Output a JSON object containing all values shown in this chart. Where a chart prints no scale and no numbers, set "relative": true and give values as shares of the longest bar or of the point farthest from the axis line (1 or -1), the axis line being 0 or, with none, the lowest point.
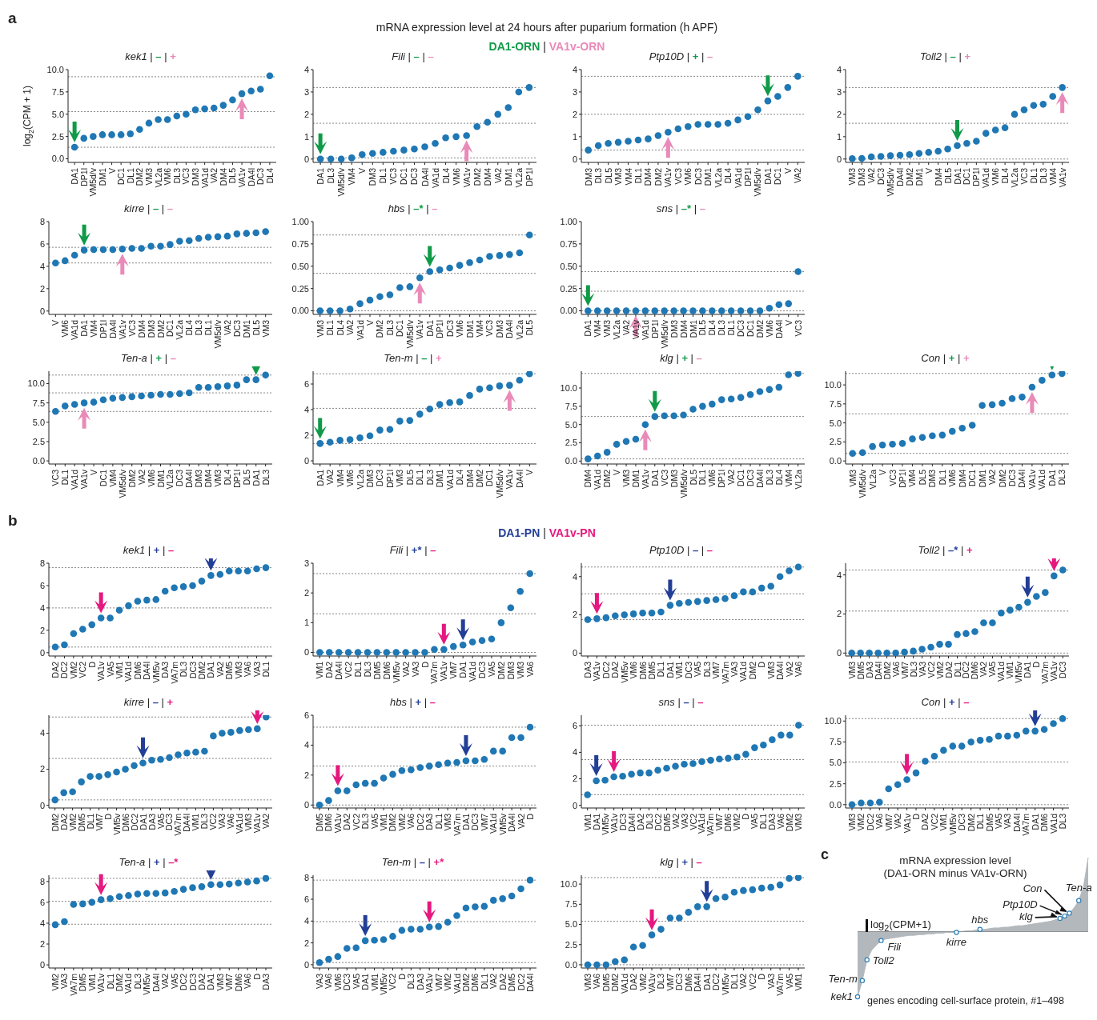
{
  "chart_data": [
    {
      "type": "scatter",
      "title": "kek1 | – | +",
      "ylabel": "log$_{2}$(CPM + 1)",
      "marker": "circle",
      "annotations": [
        "a",
        "mRNA expression level at 24 hours after puparium formation (h APF)",
        "DA1-ORN | VA1v-ORN"
      ],
      "categories": [
        "DA1",
        "DP1l",
        "VM5d/v",
        "DM1",
        "V",
        "DC1",
        "DL1",
        "DM2",
        "VM3",
        "VL2a",
        "VM6",
        "DL3",
        "VC3",
        "DM3",
        "VA1d",
        "VA2",
        "DM4",
        "DL5",
        "VA1v",
        "DA4l",
        "DC3",
        "DL4"
      ],
      "series": [
        {
          "color": "#1f77b4",
          "values": [
            1.3,
            2.3,
            2.5,
            2.7,
            2.7,
            2.7,
            2.8,
            3.3,
            4.0,
            4.4,
            4.4,
            4.8,
            5.0,
            5.5,
            5.6,
            5.7,
            6.0,
            6.6,
            7.3,
            7.6,
            7.8,
            9.3
          ]
        }
      ],
      "ylim": [
        -0.4,
        10
      ],
      "yticks": [
        {
          "value": 0,
          "label": "0.0"
        },
        {
          "value": 2.5,
          "label": "2.5"
        },
        {
          "value": 5,
          "label": "5.0"
        },
        {
          "value": 7.5,
          "label": "7.5"
        },
        {
          "value": 10,
          "label": "10.0"
        }
      ],
      "ref_lines": [
        {
          "axis": "y",
          "value": 1.3
        },
        {
          "axis": "y",
          "value": 5.3
        },
        {
          "axis": "y",
          "value": 9.2
        }
      ]
    },
    {
      "type": "scatter",
      "title": "Fili | – | –",
      "marker": "circle",
      "categories": [
        "DA1",
        "DL3",
        "VM5d/v",
        "VM4",
        "V",
        "DM3",
        "DL1",
        "VC3",
        "DC1",
        "DC3",
        "DA4l",
        "VA1d",
        "DL4",
        "VM6",
        "VA1v",
        "DM2",
        "DM4",
        "VA2",
        "DM1",
        "VL2a",
        "DP1l"
      ],
      "series": [
        {
          "color": "#1f77b4",
          "values": [
            0,
            0,
            0,
            0.05,
            0.2,
            0.25,
            0.3,
            0.35,
            0.4,
            0.45,
            0.55,
            0.7,
            0.95,
            1.0,
            1.05,
            1.45,
            1.65,
            2.0,
            2.3,
            3.0,
            3.2
          ]
        }
      ],
      "ylim": [
        -0.15,
        4
      ],
      "yticks": [
        0,
        1,
        2,
        3,
        4
      ],
      "ref_lines": [
        {
          "axis": "y",
          "value": 0.05
        },
        {
          "axis": "y",
          "value": 1.6
        },
        {
          "axis": "y",
          "value": 3.2
        }
      ]
    },
    {
      "type": "scatter",
      "title": "Ptp10D | + | –",
      "marker": "circle",
      "categories": [
        "DM3",
        "DL3",
        "DL5",
        "VM3",
        "VM4",
        "DL1",
        "DM4",
        "DM2",
        "VA1v",
        "VC3",
        "VM6",
        "DC3",
        "DM1",
        "VL2a",
        "DL4",
        "VA1d",
        "DP1l",
        "VM5d/v",
        "DA1",
        "DC1",
        "V",
        "VA2"
      ],
      "series": [
        {
          "color": "#1f77b4",
          "values": [
            0.4,
            0.6,
            0.7,
            0.75,
            0.8,
            0.85,
            0.9,
            1.05,
            1.2,
            1.35,
            1.45,
            1.55,
            1.55,
            1.55,
            1.6,
            1.75,
            1.9,
            2.2,
            2.6,
            2.8,
            3.2,
            3.7
          ]
        }
      ],
      "ylim": [
        -0.15,
        4
      ],
      "yticks": [
        0,
        1,
        2,
        3,
        4
      ],
      "ref_lines": [
        {
          "axis": "y",
          "value": 0.4
        },
        {
          "axis": "y",
          "value": 2.0
        },
        {
          "axis": "y",
          "value": 3.7
        }
      ]
    },
    {
      "type": "scatter",
      "title": "Toll2 | – | +",
      "marker": "circle",
      "categories": [
        "VM3",
        "DM3",
        "VA2",
        "DC3",
        "VM5d/v",
        "DA4l",
        "DM2",
        "DM1",
        "V",
        "DM4",
        "DL5",
        "DA1",
        "DC1",
        "DP1l",
        "VA1d",
        "VM6",
        "DL4",
        "VL2a",
        "VC3",
        "DL1",
        "DL3",
        "VM4",
        "VA1v"
      ],
      "series": [
        {
          "color": "#1f77b4",
          "values": [
            0.02,
            0.03,
            0.1,
            0.12,
            0.15,
            0.17,
            0.2,
            0.25,
            0.3,
            0.35,
            0.45,
            0.6,
            0.7,
            0.8,
            1.15,
            1.3,
            1.4,
            2.0,
            2.2,
            2.4,
            2.45,
            2.8,
            3.2
          ]
        }
      ],
      "ylim": [
        -0.15,
        4
      ],
      "yticks": [
        0,
        1,
        2,
        3,
        4
      ],
      "ref_lines": [
        {
          "axis": "y",
          "value": 0.0
        },
        {
          "axis": "y",
          "value": 1.6
        },
        {
          "axis": "y",
          "value": 3.2
        }
      ]
    },
    {
      "type": "scatter",
      "title": "kirre | – | –",
      "marker": "circle",
      "categories": [
        "V",
        "VM6",
        "VA1d",
        "DA1",
        "VM4",
        "DP1l",
        "DA4l",
        "VA1v",
        "VC3",
        "DM4",
        "DM3",
        "DM2",
        "DC1",
        "VL2a",
        "DL4",
        "DL3",
        "DL1",
        "VM5d/v",
        "VA2",
        "DC3",
        "DM1",
        "DL5",
        "VM3"
      ],
      "series": [
        {
          "color": "#1f77b4",
          "values": [
            4.3,
            4.5,
            5.0,
            5.45,
            5.5,
            5.5,
            5.5,
            5.55,
            5.6,
            5.6,
            5.8,
            5.8,
            5.95,
            6.25,
            6.3,
            6.5,
            6.6,
            6.65,
            6.7,
            6.9,
            6.95,
            7.0,
            7.1
          ]
        }
      ],
      "ylim": [
        -0.3,
        8
      ],
      "yticks": [
        0,
        2,
        4,
        6,
        8
      ],
      "ref_lines": [
        {
          "axis": "y",
          "value": 4.3
        },
        {
          "axis": "y",
          "value": 5.7
        }
      ]
    },
    {
      "type": "scatter",
      "title": "hbs | –* | –",
      "marker": "circle",
      "categories": [
        "VM3",
        "DL1",
        "DL4",
        "VA2",
        "VA1d",
        "V",
        "DM2",
        "DL3",
        "DC1",
        "VM5d/v",
        "VA1v",
        "DA1",
        "DP1l",
        "DC3",
        "VM6",
        "DM1",
        "VM4",
        "VC3",
        "DM3",
        "DA4l",
        "VL2a",
        "DL5"
      ],
      "series": [
        {
          "color": "#1f77b4",
          "values": [
            0,
            0,
            0,
            0.02,
            0.08,
            0.12,
            0.16,
            0.18,
            0.26,
            0.27,
            0.37,
            0.44,
            0.46,
            0.48,
            0.51,
            0.54,
            0.57,
            0.61,
            0.62,
            0.63,
            0.65,
            0.85
          ]
        }
      ],
      "ylim": [
        -0.04,
        1
      ],
      "yticks": [
        {
          "value": 0,
          "label": "0.00"
        },
        {
          "value": 0.25,
          "label": "0.25"
        },
        {
          "value": 0.5,
          "label": "0.50"
        },
        {
          "value": 0.75,
          "label": "0.75"
        },
        {
          "value": 1,
          "label": "1.00"
        }
      ],
      "ref_lines": [
        {
          "axis": "y",
          "value": 0.0
        },
        {
          "axis": "y",
          "value": 0.42
        },
        {
          "axis": "y",
          "value": 0.85
        }
      ]
    },
    {
      "type": "scatter",
      "title": "sns | –* | –",
      "marker": "circle",
      "categories": [
        "DA1",
        "VM4",
        "VM3",
        "VL2a",
        "VA2",
        "VA1v",
        "VA1d",
        "DP1l",
        "VM5d/v",
        "DM3",
        "DM4",
        "DM1",
        "DL5",
        "DL4",
        "DL3",
        "DL1",
        "DC3",
        "DC1",
        "DM2",
        "VM6",
        "DA4l",
        "V",
        "VC3"
      ],
      "series": [
        {
          "color": "#1f77b4",
          "values": [
            0,
            0,
            0,
            0,
            0,
            0,
            0,
            0,
            0,
            0,
            0,
            0,
            0,
            0,
            0,
            0,
            0,
            0,
            0,
            0.03,
            0.07,
            0.08,
            0.44
          ]
        }
      ],
      "ylim": [
        -0.04,
        1
      ],
      "yticks": [
        {
          "value": 0,
          "label": "0.00"
        },
        {
          "value": 0.25,
          "label": "0.25"
        },
        {
          "value": 0.5,
          "label": "0.50"
        },
        {
          "value": 0.75,
          "label": "0.75"
        },
        {
          "value": 1,
          "label": "1.00"
        }
      ],
      "ref_lines": [
        {
          "axis": "y",
          "value": 0.0
        },
        {
          "axis": "y",
          "value": 0.22
        },
        {
          "axis": "y",
          "value": 0.44
        }
      ]
    },
    {
      "type": "scatter",
      "title": "Ten-a | + | –",
      "marker": "circle",
      "categories": [
        "VC3",
        "DL1",
        "VA1d",
        "VA1v",
        "V",
        "DC1",
        "VM4",
        "VM5d/v",
        "DM2",
        "VA2",
        "VM6",
        "DM1",
        "VL2a",
        "DC3",
        "DA4l",
        "DM3",
        "DM4",
        "VM3",
        "DL4",
        "DP1l",
        "DL5",
        "DA1",
        "DL3"
      ],
      "series": [
        {
          "color": "#1f77b4",
          "values": [
            6.4,
            7.1,
            7.3,
            7.5,
            7.6,
            7.9,
            8.1,
            8.2,
            8.3,
            8.4,
            8.5,
            8.6,
            8.6,
            8.7,
            8.8,
            9.5,
            9.5,
            9.6,
            9.7,
            9.8,
            10.5,
            10.5,
            11.1
          ]
        }
      ],
      "ylim": [
        -0.4,
        11.6
      ],
      "yticks": [
        {
          "value": 0,
          "label": "0.0"
        },
        {
          "value": 2.5,
          "label": "2.5"
        },
        {
          "value": 5,
          "label": "5.0"
        },
        {
          "value": 7.5,
          "label": "7.5"
        },
        {
          "value": 10,
          "label": "10.0"
        }
      ],
      "ref_lines": [
        {
          "axis": "y",
          "value": 6.4
        },
        {
          "axis": "y",
          "value": 8.8
        },
        {
          "axis": "y",
          "value": 11.1
        }
      ]
    },
    {
      "type": "scatter",
      "title": "Ten-m | – | +",
      "marker": "circle",
      "categories": [
        "DA1",
        "VA2",
        "VM4",
        "VM6",
        "VL2a",
        "DM3",
        "DC3",
        "DP1l",
        "VM3",
        "DL5",
        "DL1",
        "DL3",
        "DM1",
        "VA1d",
        "DL4",
        "DM4",
        "DM2",
        "DC1",
        "VM5d/v",
        "VA1v",
        "DA4l",
        "V"
      ],
      "series": [
        {
          "color": "#1f77b4",
          "values": [
            1.35,
            1.45,
            1.6,
            1.65,
            1.8,
            1.95,
            2.4,
            2.45,
            3.1,
            3.15,
            3.65,
            4.05,
            4.4,
            4.55,
            4.6,
            5.1,
            5.6,
            5.7,
            5.85,
            5.9,
            6.3,
            6.8
          ]
        }
      ],
      "ylim": [
        -0.25,
        7
      ],
      "yticks": [
        0,
        2,
        4,
        6
      ],
      "ref_lines": [
        {
          "axis": "y",
          "value": 1.35
        },
        {
          "axis": "y",
          "value": 4.1
        },
        {
          "axis": "y",
          "value": 6.8
        }
      ]
    },
    {
      "type": "scatter",
      "title": "klg | + | –",
      "marker": "circle",
      "categories": [
        "DM4",
        "VA1d",
        "DM2",
        "V",
        "VM3",
        "DM1",
        "VA1v",
        "DA1",
        "VC3",
        "DM3",
        "VM5d/v",
        "DL5",
        "DL1",
        "VM6",
        "DP1l",
        "VA2",
        "DC1",
        "DC3",
        "DA4l",
        "DL3",
        "DL4",
        "VM4",
        "VL2a"
      ],
      "series": [
        {
          "color": "#1f77b4",
          "values": [
            0.3,
            0.7,
            1.2,
            2.3,
            2.7,
            3.0,
            5.0,
            6.1,
            6.2,
            6.2,
            6.3,
            7.1,
            7.5,
            7.8,
            8.4,
            8.5,
            8.7,
            9.1,
            9.5,
            9.8,
            10.1,
            11.8,
            12.0
          ]
        }
      ],
      "ylim": [
        -0.4,
        12.3
      ],
      "yticks": [
        {
          "value": 0,
          "label": "0.0"
        },
        {
          "value": 2.5,
          "label": "2.5"
        },
        {
          "value": 5,
          "label": "5.0"
        },
        {
          "value": 7.5,
          "label": "7.5"
        },
        {
          "value": 10,
          "label": "10.0"
        }
      ],
      "ref_lines": [
        {
          "axis": "y",
          "value": 0.3
        },
        {
          "axis": "y",
          "value": 6.1
        },
        {
          "axis": "y",
          "value": 12.0
        }
      ]
    },
    {
      "type": "scatter",
      "title": "Con | + | +",
      "marker": "circle",
      "categories": [
        "VM3",
        "VM5d/v",
        "VL2a",
        "V",
        "VC3",
        "DP1l",
        "VM4",
        "DL5",
        "DM3",
        "DL1",
        "VM6",
        "DM4",
        "DC1",
        "DM1",
        "VA2",
        "DM2",
        "DC3",
        "DA4l",
        "VA1v",
        "VA1d",
        "DA1",
        "DL3"
      ],
      "series": [
        {
          "color": "#1f77b4",
          "values": [
            1.0,
            1.1,
            1.9,
            2.1,
            2.2,
            2.3,
            2.9,
            3.1,
            3.3,
            3.4,
            3.9,
            4.3,
            4.7,
            7.3,
            7.4,
            7.6,
            8.2,
            8.4,
            9.7,
            10.6,
            11.3,
            11.5
          ]
        }
      ],
      "ylim": [
        -0.4,
        11.8
      ],
      "yticks": [
        {
          "value": 0,
          "label": "0.0"
        },
        {
          "value": 2.5,
          "label": "2.5"
        },
        {
          "value": 5,
          "label": "5.0"
        },
        {
          "value": 7.5,
          "label": "7.5"
        },
        {
          "value": 10,
          "label": "10.0"
        }
      ],
      "ref_lines": [
        {
          "axis": "y",
          "value": 1.0
        },
        {
          "axis": "y",
          "value": 6.2
        },
        {
          "axis": "y",
          "value": 11.5
        }
      ]
    },
    {
      "type": "scatter",
      "title": "kek1 | + | –",
      "marker": "circle",
      "annotations": [
        "b",
        "DA1-PN | VA1v-PN"
      ],
      "categories": [
        "DA2",
        "DC2",
        "VM2",
        "VC2",
        "D",
        "VA1v",
        "VA5",
        "VM1",
        "VA1d",
        "DM6",
        "DA4l",
        "VM5v",
        "DA3",
        "VA7m",
        "DL3",
        "DC3",
        "DM2",
        "DA1",
        "VA2",
        "DM5",
        "VM3",
        "VA6",
        "VA3",
        "DL1"
      ],
      "series": [
        {
          "color": "#1f77b4",
          "values": [
            0.5,
            0.7,
            1.7,
            2.1,
            2.5,
            3.1,
            3.1,
            3.8,
            4.2,
            4.6,
            4.7,
            4.75,
            5.5,
            5.8,
            5.9,
            6.0,
            6.4,
            6.9,
            7.0,
            7.3,
            7.3,
            7.3,
            7.5,
            7.6
          ]
        }
      ],
      "ylim": [
        -0.3,
        8
      ],
      "yticks": [
        0,
        2,
        4,
        6,
        8
      ],
      "ref_lines": [
        {
          "axis": "y",
          "value": 0.5
        },
        {
          "axis": "y",
          "value": 4.0
        },
        {
          "axis": "y",
          "value": 7.6
        }
      ]
    },
    {
      "type": "scatter",
      "title": "Fili | +* | –",
      "marker": "circle",
      "categories": [
        "VM1",
        "DA2",
        "DA4l",
        "VC2",
        "DL1",
        "DL3",
        "DM5",
        "DM6",
        "VM5v",
        "VA2",
        "VA3",
        "D",
        "VA7m",
        "VA1v",
        "VM7",
        "DA1",
        "VA1d",
        "DC3",
        "VA5",
        "DM2",
        "DM3",
        "VM3",
        "VA6"
      ],
      "series": [
        {
          "color": "#1f77b4",
          "values": [
            0,
            0,
            0,
            0,
            0,
            0,
            0,
            0,
            0,
            0,
            0,
            0,
            0.1,
            0.1,
            0.2,
            0.25,
            0.35,
            0.4,
            0.45,
            1.0,
            1.5,
            2.05,
            2.65
          ]
        }
      ],
      "ylim": [
        -0.12,
        3
      ],
      "yticks": [
        0,
        1,
        2,
        3
      ],
      "ref_lines": [
        {
          "axis": "y",
          "value": 0.0
        },
        {
          "axis": "y",
          "value": 1.3
        },
        {
          "axis": "y",
          "value": 2.65
        }
      ]
    },
    {
      "type": "scatter",
      "title": "Ptp10D | – | –",
      "marker": "circle",
      "categories": [
        "DA3",
        "VA1v",
        "DC2",
        "DA2",
        "VM5v",
        "VM6",
        "DM6",
        "DM5",
        "DL1",
        "DA1",
        "VM1",
        "DC3",
        "VA5",
        "DL3",
        "VM7",
        "VA7m",
        "VA3",
        "VA1d",
        "DM2",
        "D",
        "VM3",
        "DA4l",
        "VA2",
        "VA6"
      ],
      "series": [
        {
          "color": "#1f77b4",
          "values": [
            1.75,
            1.8,
            1.85,
            1.95,
            2.0,
            2.05,
            2.1,
            2.1,
            2.15,
            2.5,
            2.6,
            2.65,
            2.7,
            2.75,
            2.8,
            2.85,
            3.0,
            3.2,
            3.2,
            3.4,
            3.5,
            4.0,
            4.3,
            4.5
          ]
        }
      ],
      "ylim": [
        -0.15,
        4.7
      ],
      "yticks": [
        0,
        2,
        4
      ],
      "ref_lines": [
        {
          "axis": "y",
          "value": 1.75
        },
        {
          "axis": "y",
          "value": 3.1
        },
        {
          "axis": "y",
          "value": 4.5
        }
      ]
    },
    {
      "type": "scatter",
      "title": "Toll2 | –* | +",
      "marker": "circle",
      "categories": [
        "VM3",
        "DM5",
        "DA3",
        "DA4l",
        "DM2",
        "VA6",
        "VM7",
        "DL3",
        "VA3",
        "VC2",
        "VM2",
        "DA2",
        "DL1",
        "DC2",
        "DM6",
        "VA2",
        "VA5",
        "VA1d",
        "VM1",
        "VM5v",
        "DA1",
        "D",
        "VA7m",
        "VA1v",
        "DC3"
      ],
      "series": [
        {
          "color": "#1f77b4",
          "values": [
            0,
            0,
            0,
            0,
            0,
            0,
            0.05,
            0.1,
            0.2,
            0.3,
            0.45,
            0.45,
            0.95,
            1.0,
            1.1,
            1.55,
            1.55,
            2.05,
            2.2,
            2.35,
            2.6,
            2.9,
            3.1,
            3.95,
            4.25
          ]
        }
      ],
      "ylim": [
        -0.15,
        4.6
      ],
      "yticks": [
        0,
        2,
        4
      ],
      "ref_lines": [
        {
          "axis": "y",
          "value": 0.0
        },
        {
          "axis": "y",
          "value": 2.15
        },
        {
          "axis": "y",
          "value": 4.25
        }
      ]
    },
    {
      "type": "scatter",
      "title": "kirre | – | +",
      "marker": "circle",
      "categories": [
        "DM2",
        "DA2",
        "VM2",
        "DM5",
        "DL1",
        "VM7",
        "D",
        "VM5v",
        "DM6",
        "DC2",
        "DA1",
        "DA3",
        "VA5",
        "DC3",
        "VA7m",
        "DA4l",
        "VM1",
        "DL3",
        "VC2",
        "VA3",
        "VA6",
        "VA1d",
        "VM3",
        "VA1v",
        "VA2"
      ],
      "series": [
        {
          "color": "#1f77b4",
          "values": [
            0.3,
            0.7,
            0.75,
            1.3,
            1.6,
            1.6,
            1.7,
            1.85,
            2.0,
            2.2,
            2.35,
            2.5,
            2.55,
            2.65,
            2.8,
            2.9,
            2.95,
            3.0,
            3.85,
            4.0,
            4.05,
            4.15,
            4.2,
            4.25,
            4.9
          ]
        }
      ],
      "ylim": [
        -0.15,
        5
      ],
      "yticks": [
        0,
        2,
        4
      ],
      "ref_lines": [
        {
          "axis": "y",
          "value": 0.3
        },
        {
          "axis": "y",
          "value": 2.6
        },
        {
          "axis": "y",
          "value": 4.9
        }
      ]
    },
    {
      "type": "scatter",
      "title": "hbs | + | –",
      "marker": "circle",
      "categories": [
        "DM5",
        "DM6",
        "VA1v",
        "DA2",
        "VC2",
        "DL3",
        "VA5",
        "VM1",
        "DM2",
        "VM2",
        "VA6",
        "DC2",
        "DA3",
        "DL1",
        "VM3",
        "VA7m",
        "DA1",
        "DC3",
        "VM7",
        "VA1d",
        "VM5v",
        "DA4l",
        "VA2",
        "D"
      ],
      "series": [
        {
          "color": "#1f77b4",
          "values": [
            0,
            0.3,
            0.95,
            0.95,
            1.35,
            1.45,
            1.45,
            1.8,
            2.05,
            2.3,
            2.35,
            2.5,
            2.6,
            2.7,
            2.8,
            2.85,
            2.95,
            2.95,
            3.05,
            3.6,
            3.6,
            4.5,
            4.5,
            5.2
          ]
        }
      ],
      "ylim": [
        -0.2,
        6
      ],
      "yticks": [
        0,
        2,
        4,
        6
      ],
      "ref_lines": [
        {
          "axis": "y",
          "value": 0.0
        },
        {
          "axis": "y",
          "value": 2.6
        },
        {
          "axis": "y",
          "value": 5.2
        }
      ]
    },
    {
      "type": "scatter",
      "title": "sns | – | –",
      "marker": "circle",
      "categories": [
        "VM1",
        "DA1",
        "VM5v",
        "VA1v",
        "DC3",
        "DA4l",
        "DA2",
        "DL3",
        "DC2",
        "DM5",
        "VA2",
        "VA3",
        "VC2",
        "VA1d",
        "VA7m",
        "VM7",
        "DM6",
        "VM2",
        "D",
        "VA5",
        "DL1",
        "DA3",
        "VA6",
        "DM2",
        "VM3"
      ],
      "series": [
        {
          "color": "#1f77b4",
          "values": [
            0.8,
            1.85,
            1.9,
            2.15,
            2.2,
            2.35,
            2.45,
            2.45,
            2.65,
            2.8,
            2.95,
            3.1,
            3.15,
            3.3,
            3.4,
            3.5,
            3.55,
            3.65,
            3.85,
            4.35,
            4.55,
            4.95,
            5.3,
            5.3,
            6.05
          ]
        }
      ],
      "ylim": [
        -0.2,
        6.8
      ],
      "yticks": [
        0,
        2,
        4,
        6
      ],
      "ref_lines": [
        {
          "axis": "y",
          "value": 0.8
        },
        {
          "axis": "y",
          "value": 3.45
        },
        {
          "axis": "y",
          "value": 6.05
        }
      ]
    },
    {
      "type": "scatter",
      "title": "Con | + | –",
      "marker": "circle",
      "categories": [
        "VM3",
        "VM2",
        "DC2",
        "VA6",
        "VM7",
        "VA2",
        "VA1v",
        "D",
        "DA2",
        "VC2",
        "VM1",
        "VM5v",
        "DC3",
        "DM2",
        "DL1",
        "DM5",
        "VA5",
        "VA3",
        "DA4l",
        "VA7m",
        "DA1",
        "DM6",
        "VA1d",
        "DL3"
      ],
      "series": [
        {
          "color": "#1f77b4",
          "values": [
            0,
            0.2,
            0.2,
            0.3,
            1.9,
            2.4,
            3.0,
            3.8,
            5.2,
            5.8,
            6.5,
            7.0,
            7.0,
            7.5,
            7.7,
            7.8,
            8.2,
            8.2,
            8.3,
            8.8,
            8.8,
            9.0,
            9.7,
            10.3
          ]
        }
      ],
      "ylim": [
        -0.4,
        10.7
      ],
      "yticks": [
        {
          "value": 0,
          "label": "0.0"
        },
        {
          "value": 2.5,
          "label": "2.5"
        },
        {
          "value": 5,
          "label": "5.0"
        },
        {
          "value": 7.5,
          "label": "7.5"
        },
        {
          "value": 10,
          "label": "10.0"
        }
      ],
      "ref_lines": [
        {
          "axis": "y",
          "value": 0.0
        },
        {
          "axis": "y",
          "value": 5.1
        },
        {
          "axis": "y",
          "value": 10.3
        }
      ]
    },
    {
      "type": "scatter",
      "title": "Ten-a | + | –*",
      "marker": "circle",
      "categories": [
        "VM2",
        "VA3",
        "VA7m",
        "DM5",
        "VM1",
        "VA1v",
        "DL1",
        "DM2",
        "VA1d",
        "DL3",
        "VM5v",
        "DA4l",
        "VA2",
        "VA5",
        "DC2",
        "DC3",
        "DA2",
        "DA1",
        "VM3",
        "VM7",
        "DM6",
        "VA6",
        "D",
        "DA3"
      ],
      "series": [
        {
          "color": "#1f77b4",
          "values": [
            3.85,
            4.15,
            5.8,
            5.85,
            6.0,
            6.25,
            6.35,
            6.55,
            6.65,
            6.8,
            6.85,
            6.85,
            6.9,
            7.05,
            7.25,
            7.4,
            7.5,
            7.7,
            7.7,
            7.75,
            7.85,
            7.95,
            8.05,
            8.3
          ]
        }
      ],
      "ylim": [
        -0.3,
        8.6
      ],
      "yticks": [
        0,
        2,
        4,
        6,
        8
      ],
      "ref_lines": [
        {
          "axis": "y",
          "value": 3.9
        },
        {
          "axis": "y",
          "value": 6.1
        },
        {
          "axis": "y",
          "value": 8.3
        }
      ]
    },
    {
      "type": "scatter",
      "title": "Ten-m | – | +*",
      "marker": "circle",
      "categories": [
        "VA3",
        "VA6",
        "VM6",
        "DC3",
        "VA5",
        "DA1",
        "VM1",
        "VM5v",
        "VC2",
        "D",
        "DL3",
        "DA3",
        "VA1v",
        "VM7",
        "VM2",
        "VA1d",
        "DM2",
        "DM6",
        "DL1",
        "VA2",
        "DA2",
        "DM5",
        "DC2",
        "DA4l"
      ],
      "series": [
        {
          "color": "#1f77b4",
          "values": [
            0.2,
            0.5,
            0.75,
            1.5,
            1.55,
            2.2,
            2.25,
            2.3,
            2.6,
            3.15,
            3.25,
            3.25,
            3.45,
            3.5,
            3.9,
            4.5,
            5.2,
            5.3,
            5.35,
            5.9,
            6.05,
            6.3,
            6.95,
            7.75
          ]
        }
      ],
      "ylim": [
        -0.3,
        8.2
      ],
      "yticks": [
        0,
        2,
        4,
        6,
        8
      ],
      "ref_lines": [
        {
          "axis": "y",
          "value": 0.2
        },
        {
          "axis": "y",
          "value": 3.95
        },
        {
          "axis": "y",
          "value": 7.75
        }
      ]
    },
    {
      "type": "scatter",
      "title": "klg | + | –",
      "marker": "circle",
      "categories": [
        "VM3",
        "VA6",
        "DM5",
        "DM2",
        "VA1d",
        "DA2",
        "VM2",
        "VA1v",
        "DL3",
        "VM7",
        "DC3",
        "DM6",
        "DA4l",
        "DA1",
        "DC2",
        "VM5v",
        "DL1",
        "VA2",
        "VC2",
        "D",
        "VA3",
        "VA7m",
        "VA5",
        "VM1"
      ],
      "series": [
        {
          "color": "#1f77b4",
          "values": [
            0,
            0,
            0,
            0.4,
            0.6,
            2.2,
            2.4,
            3.7,
            4.4,
            5.8,
            5.8,
            6.5,
            7.2,
            7.2,
            8.2,
            8.4,
            9.0,
            9.2,
            9.3,
            9.5,
            9.6,
            9.9,
            10.7,
            10.8
          ]
        }
      ],
      "ylim": [
        -0.4,
        11.1
      ],
      "yticks": [
        {
          "value": 0,
          "label": "0.0"
        },
        {
          "value": 2.5,
          "label": "2.5"
        },
        {
          "value": 5,
          "label": "5.0"
        },
        {
          "value": 7.5,
          "label": "7.5"
        },
        {
          "value": 10,
          "label": "10.0"
        }
      ],
      "ref_lines": [
        {
          "axis": "y",
          "value": 0.0
        },
        {
          "axis": "y",
          "value": 5.4
        },
        {
          "axis": "y",
          "value": 10.8
        }
      ]
    },
    {
      "type": "area",
      "relative": true,
      "tick_labels": false,
      "title": "mRNA expression level\n(DA1-ORN minus VA1v-ORN)",
      "xlabel": "genes encoding cell-surface protein, #1–498",
      "categories": [
        null,
        null,
        null,
        null,
        null,
        null,
        null,
        null,
        null,
        null,
        null,
        null,
        null,
        null,
        null,
        null,
        null,
        null,
        null,
        null,
        null,
        null,
        null,
        null,
        null,
        null,
        null,
        null,
        null,
        null,
        null,
        null,
        null,
        null,
        null,
        null,
        null,
        null,
        null,
        null,
        null,
        null,
        null,
        null,
        null,
        null,
        null,
        null,
        null,
        null
      ],
      "series": [
        {
          "color": "#b3b8bc",
          "values": [
            -0.88,
            -0.66,
            -0.38,
            -0.25,
            -0.18,
            -0.12,
            -0.1,
            -0.09,
            -0.08,
            -0.07,
            -0.06,
            -0.05,
            -0.05,
            -0.04,
            -0.04,
            -0.03,
            -0.03,
            -0.02,
            -0.02,
            -0.01,
            -0.01,
            -0.01,
            0,
            0.01,
            0.01,
            0.02,
            0.03,
            0.03,
            0.04,
            0.05,
            0.05,
            0.06,
            0.06,
            0.07,
            0.08,
            0.08,
            0.09,
            0.1,
            0.11,
            0.12,
            0.13,
            0.14,
            0.16,
            0.18,
            0.21,
            0.25,
            0.32,
            0.42,
            0.6,
            1.0
          ]
        }
      ],
      "annotations": [
        "c",
        "log$_{2}$(CPM+1)",
        "kek1",
        "Ten-m",
        "Toll2",
        "Fili",
        "kirre",
        "hbs",
        "klg",
        "Ptp10D",
        "Con",
        "Ten-a"
      ]
    }
  ]
}
